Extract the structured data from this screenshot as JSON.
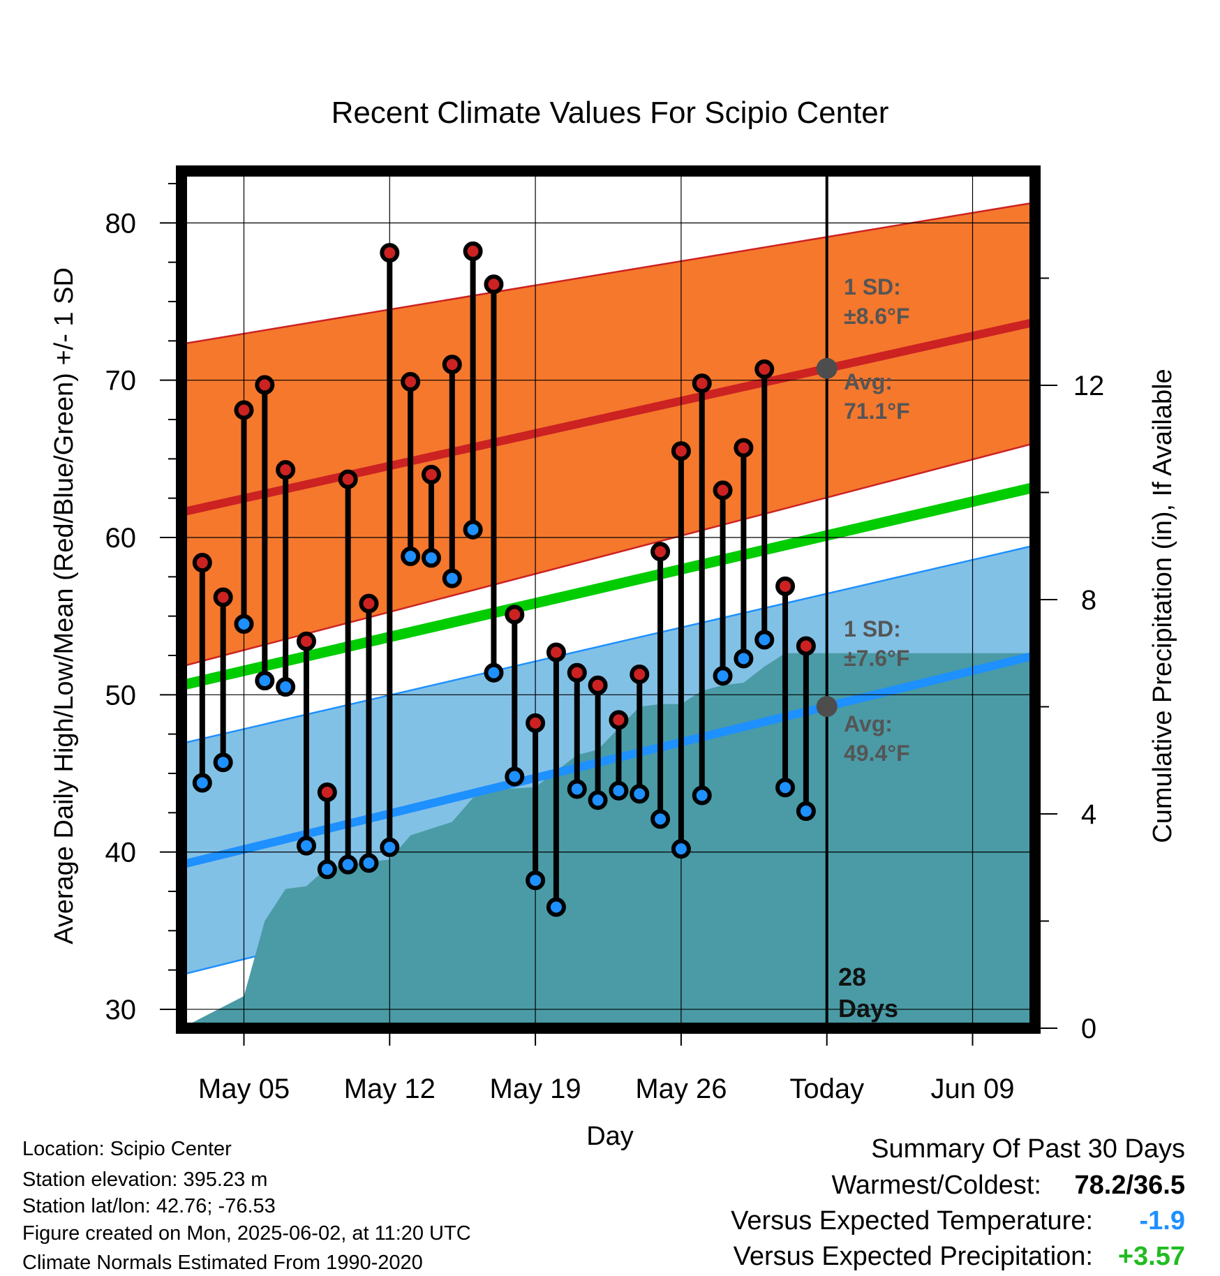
{
  "chart_data": {
    "type": "line",
    "title": "Recent Climate Values For Scipio Center",
    "xlabel": "Day",
    "ylabel": "Average Daily High/Low/Mean (Red/Blue/Green) +/- 1 SD",
    "y2label": "Cumulative Precipitation (in), If Available",
    "ylim": [
      28.8,
      83.3
    ],
    "y2lim": [
      0,
      16
    ],
    "xlim": [
      "2025-05-02",
      "2025-06-12"
    ],
    "x_ticks": [
      "May 05",
      "May 12",
      "May 19",
      "May 26",
      "Today",
      "Jun 09"
    ],
    "y_ticks": [
      30,
      40,
      50,
      60,
      70,
      80
    ],
    "y2_ticks": [
      0,
      4,
      8,
      12
    ],
    "grid": true,
    "today": "2025-06-02",
    "normals": {
      "dates": [
        "2025-05-02",
        "2025-06-12"
      ],
      "avg_high": [
        61.6,
        73.7
      ],
      "avg_high_sd_upper": [
        72.3,
        81.3
      ],
      "avg_high_sd_lower": [
        51.8,
        66.0
      ],
      "avg_mean": [
        50.6,
        63.2
      ],
      "avg_low": [
        39.2,
        52.5
      ],
      "avg_low_sd_upper": [
        46.9,
        59.5
      ],
      "avg_low_sd_lower": [
        32.2,
        45.7
      ]
    },
    "series": [
      {
        "name": "High",
        "color": "#cc2222",
        "dates": [
          "2025-05-03",
          "2025-05-04",
          "2025-05-05",
          "2025-05-06",
          "2025-05-07",
          "2025-05-08",
          "2025-05-09",
          "2025-05-10",
          "2025-05-11",
          "2025-05-12",
          "2025-05-13",
          "2025-05-14",
          "2025-05-15",
          "2025-05-16",
          "2025-05-17",
          "2025-05-18",
          "2025-05-19",
          "2025-05-20",
          "2025-05-21",
          "2025-05-22",
          "2025-05-23",
          "2025-05-24",
          "2025-05-25",
          "2025-05-26",
          "2025-05-27",
          "2025-05-28",
          "2025-05-29",
          "2025-05-30",
          "2025-05-31",
          "2025-06-01"
        ],
        "values": [
          58.4,
          56.2,
          68.1,
          69.7,
          64.3,
          53.4,
          43.8,
          63.7,
          55.8,
          78.1,
          69.9,
          64.0,
          71.0,
          78.2,
          76.1,
          55.1,
          48.2,
          52.7,
          51.4,
          50.6,
          48.4,
          51.3,
          59.1,
          65.5,
          69.8,
          63.0,
          65.7,
          70.7,
          56.9,
          53.1
        ]
      },
      {
        "name": "Low",
        "color": "#1e90ff",
        "dates": [
          "2025-05-03",
          "2025-05-04",
          "2025-05-05",
          "2025-05-06",
          "2025-05-07",
          "2025-05-08",
          "2025-05-09",
          "2025-05-10",
          "2025-05-11",
          "2025-05-12",
          "2025-05-13",
          "2025-05-14",
          "2025-05-15",
          "2025-05-16",
          "2025-05-17",
          "2025-05-18",
          "2025-05-19",
          "2025-05-20",
          "2025-05-21",
          "2025-05-22",
          "2025-05-23",
          "2025-05-24",
          "2025-05-25",
          "2025-05-26",
          "2025-05-27",
          "2025-05-28",
          "2025-05-29",
          "2025-05-30",
          "2025-05-31",
          "2025-06-01"
        ],
        "values": [
          44.4,
          45.7,
          54.5,
          50.9,
          50.5,
          40.4,
          38.9,
          39.2,
          39.3,
          40.3,
          58.8,
          58.7,
          57.4,
          60.5,
          51.4,
          44.8,
          38.2,
          36.5,
          44.0,
          43.3,
          43.9,
          43.7,
          42.1,
          40.2,
          43.6,
          51.2,
          52.3,
          53.5,
          44.1,
          42.6
        ]
      },
      {
        "name": "Cumulative Precipitation",
        "color": "#4a9ba6",
        "dates": [
          "2025-05-02",
          "2025-05-05",
          "2025-05-06",
          "2025-05-07",
          "2025-05-08",
          "2025-05-09",
          "2025-05-10",
          "2025-05-12",
          "2025-05-13",
          "2025-05-15",
          "2025-05-16",
          "2025-05-17",
          "2025-05-19",
          "2025-05-20",
          "2025-05-21",
          "2025-05-22",
          "2025-05-23",
          "2025-05-24",
          "2025-05-25",
          "2025-05-26",
          "2025-05-27",
          "2025-05-28",
          "2025-05-29",
          "2025-05-30",
          "2025-05-31",
          "2025-06-01",
          "2025-06-12"
        ],
        "values": [
          0.0,
          0.6,
          2.0,
          2.6,
          2.65,
          3.0,
          3.05,
          3.15,
          3.6,
          3.85,
          4.3,
          4.45,
          4.5,
          4.8,
          5.1,
          5.2,
          5.6,
          6.0,
          6.05,
          6.05,
          6.3,
          6.4,
          6.45,
          6.75,
          7.0,
          7.0,
          7.0
        ]
      }
    ],
    "annotations": {
      "high_sd_label": "1 SD:",
      "high_sd_value": "±8.6°F",
      "high_avg_label": "Avg:",
      "high_avg_value": "71.1°F",
      "low_sd_label": "1 SD:",
      "low_sd_value": "±7.6°F",
      "low_avg_label": "Avg:",
      "low_avg_value": "49.4°F",
      "days_count": "28",
      "days_word": "Days"
    },
    "colors": {
      "high_band": "#f5782d",
      "high_line": "#cc2222",
      "low_band": "#82c1e6",
      "low_line": "#1e90ff",
      "mean_line": "#00cc00",
      "precip": "#4a9ba6",
      "avg_marker": "#4d4d4d"
    }
  },
  "footer": {
    "location": "Location: Scipio Center",
    "elevation": "Station elevation: 395.23 m",
    "latlon": "Station lat/lon: 42.76; -76.53",
    "created": "Figure created on Mon, 2025-06-02, at 11:20 UTC",
    "normals": "Climate Normals Estimated From 1990-2020"
  },
  "summary": {
    "title": "Summary Of Past 30 Days",
    "warm_cold_label": "Warmest/Coldest:",
    "warm_cold_value": "78.2/36.5",
    "temp_label": "Versus Expected Temperature:",
    "temp_value": "-1.9",
    "temp_color": "#1e90ff",
    "precip_label": "Versus Expected Precipitation:",
    "precip_value": "+3.57",
    "precip_color": "#22bb22"
  }
}
